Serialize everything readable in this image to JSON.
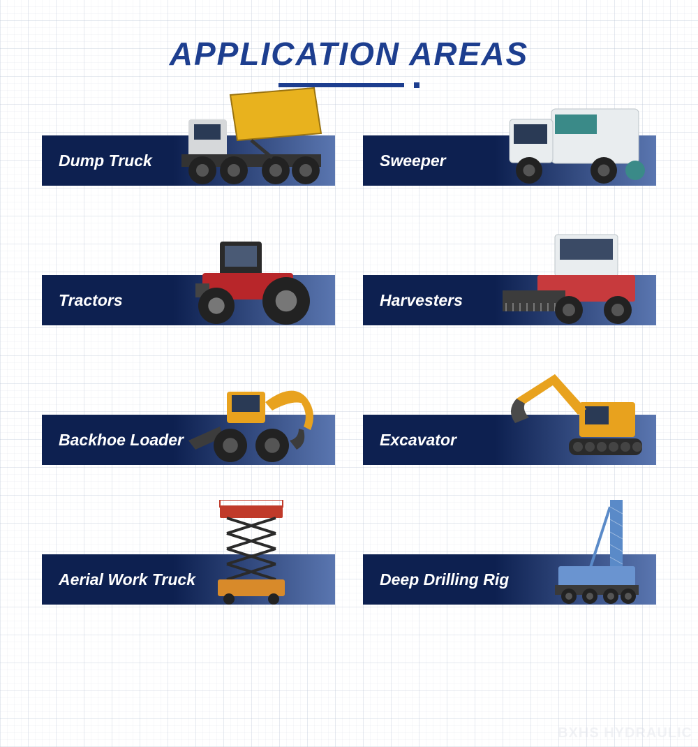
{
  "title": "APPLICATION AREAS",
  "title_color": "#1d3e8f",
  "underline_color": "#1d3e8f",
  "bar_gradient_start": "#0d2050",
  "bar_gradient_end": "#5a76b0",
  "watermark": "BXHS HYDRAULIC",
  "watermark_color": "#d8dce4",
  "cards": [
    {
      "label": "Dump Truck",
      "vehicle": "dump-truck",
      "colors": {
        "body": "#e8b21e",
        "cab": "#d6d8da",
        "wheel": "#222222"
      }
    },
    {
      "label": "Sweeper",
      "vehicle": "sweeper",
      "colors": {
        "body": "#e9edef",
        "cab": "#e9edef",
        "accent": "#3a8a88",
        "wheel": "#222222"
      }
    },
    {
      "label": "Tractors",
      "vehicle": "tractor",
      "colors": {
        "body": "#b8262a",
        "cab": "#2a2a2a",
        "wheel": "#222222",
        "rim": "#777777"
      }
    },
    {
      "label": "Harvesters",
      "vehicle": "harvester",
      "colors": {
        "body": "#c73a3d",
        "cab": "#e9edef",
        "header": "#3c3c3c",
        "wheel": "#222222"
      }
    },
    {
      "label": "Backhoe Loader",
      "vehicle": "backhoe",
      "colors": {
        "body": "#e8a21e",
        "arm": "#e8a21e",
        "bucket": "#3c3c3c",
        "wheel": "#222222"
      }
    },
    {
      "label": "Excavator",
      "vehicle": "excavator",
      "colors": {
        "body": "#e8a21e",
        "arm": "#e8a21e",
        "bucket": "#4a4a4a",
        "track": "#2a2a2a"
      }
    },
    {
      "label": "Aerial Work Truck",
      "vehicle": "scissor-lift",
      "colors": {
        "platform": "#c03a2a",
        "scissor": "#2a2a2a",
        "base": "#d88a2a"
      }
    },
    {
      "label": "Deep Drilling Rig",
      "vehicle": "drill-rig",
      "colors": {
        "mast": "#5a8ac8",
        "body": "#6a94d0",
        "base": "#3a3a3a"
      }
    }
  ]
}
